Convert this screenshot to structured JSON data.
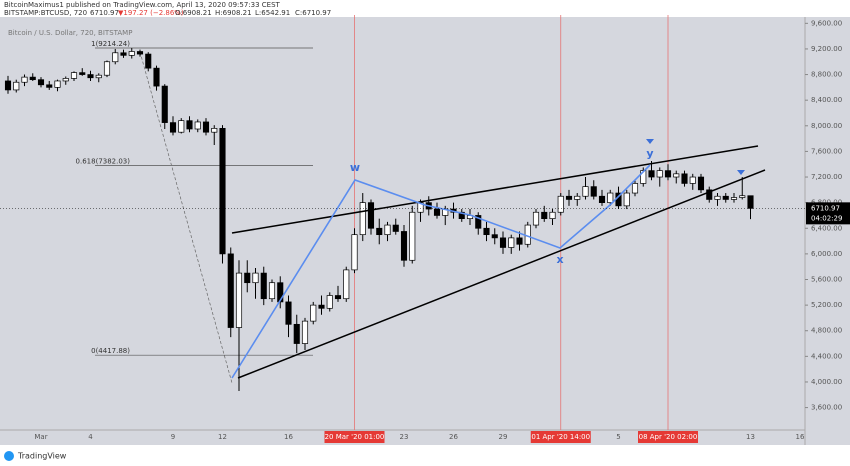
{
  "header": {
    "author_line": "BitcoinMaximus1 published on TradingView.com, April 13, 2020 09:57:33 CEST",
    "symbol": "BITSTAMP:BTCUSD, 720",
    "last": "6710.97",
    "change": "▼197.27 (−2.86%)",
    "ohlc": [
      "O:6908.21",
      "H:6908.21",
      "L:6542.91",
      "C:6710.97"
    ]
  },
  "footer": {
    "brand": "TradingView"
  },
  "chart_data": {
    "type": "candlestick",
    "subtitle": "Bitcoin / U.S. Dollar, 720, BITSTAMP",
    "categories": [
      null,
      null,
      null,
      null,
      "Mar",
      null,
      null,
      null,
      null,
      null,
      "4",
      null,
      null,
      null,
      null,
      null,
      null,
      null,
      null,
      null,
      "9",
      null,
      null,
      null,
      null,
      null,
      "12",
      null,
      null,
      null,
      null,
      null,
      null,
      null,
      "16",
      null,
      null,
      null,
      null,
      null,
      null,
      null,
      {
        "label": "20 Mar '20  01:00",
        "highlight": true
      },
      null,
      null,
      null,
      null,
      null,
      "23",
      null,
      null,
      null,
      null,
      null,
      "26",
      null,
      null,
      null,
      null,
      null,
      "29",
      null,
      null,
      null,
      null,
      null,
      null,
      {
        "label": "01 Apr '20  14:00",
        "highlight": true
      },
      null,
      null,
      null,
      null,
      null,
      null,
      "5",
      null,
      null,
      null,
      null,
      null,
      {
        "label": "08 Apr '20  02:00",
        "highlight": true
      },
      null,
      null,
      null,
      null,
      null,
      null,
      null,
      null,
      null,
      "13",
      null,
      null,
      null,
      null,
      null,
      "16"
    ],
    "open": [
      8700,
      8560,
      8680,
      8760,
      8720,
      8640,
      8600,
      8700,
      8740,
      8830,
      8800,
      8750,
      8790,
      9000,
      9140,
      9100,
      9160,
      9120,
      8900,
      8620,
      8050,
      7900,
      8080,
      7950,
      8060,
      7900,
      7960,
      6000,
      4850,
      5700,
      5550,
      5700,
      5300,
      5550,
      5250,
      4900,
      4600,
      4950,
      5200,
      5150,
      5350,
      5300,
      5750,
      6300,
      6800,
      6400,
      6300,
      6450,
      6350,
      5900,
      6650,
      6800,
      6700,
      6600,
      6700,
      6650,
      6550,
      6600,
      6400,
      6300,
      6250,
      6100,
      6250,
      6150,
      6450,
      6650,
      6550,
      6650,
      6900,
      6850,
      6900,
      7050,
      6900,
      6800,
      6950,
      6750,
      6950,
      7100,
      7300,
      7200,
      7300,
      7200,
      7250,
      7100,
      7200,
      7000,
      6850,
      6900,
      6850,
      6880,
      6908.21,
      null,
      null,
      null,
      null,
      null,
      null
    ],
    "high": [
      8780,
      8720,
      8800,
      8820,
      8760,
      8700,
      8720,
      8770,
      8850,
      8900,
      8860,
      8820,
      9020,
      9200,
      9190,
      9214.24,
      9190,
      9150,
      8940,
      8650,
      8150,
      8120,
      8150,
      8100,
      8120,
      8010,
      8010,
      6100,
      5900,
      5900,
      5780,
      5800,
      5600,
      5650,
      5350,
      5050,
      5000,
      5250,
      5350,
      5400,
      5500,
      5800,
      6400,
      6950,
      6850,
      6550,
      6500,
      6550,
      6450,
      6750,
      6850,
      6900,
      6800,
      6750,
      6800,
      6700,
      6700,
      6650,
      6500,
      6400,
      6350,
      6300,
      6350,
      6500,
      6700,
      6750,
      6700,
      6950,
      7000,
      6950,
      7200,
      7150,
      7000,
      7000,
      7050,
      7000,
      7150,
      7350,
      7450,
      7350,
      7400,
      7300,
      7300,
      7250,
      7250,
      7050,
      6950,
      6950,
      6950,
      7200,
      6908.21,
      null,
      null,
      null,
      null,
      null,
      null
    ],
    "low": [
      8500,
      8520,
      8620,
      8700,
      8600,
      8560,
      8540,
      8640,
      8700,
      8780,
      8700,
      8680,
      8760,
      8960,
      9060,
      9050,
      9080,
      8850,
      8550,
      7950,
      7850,
      7880,
      7900,
      7900,
      7850,
      7700,
      5850,
      4700,
      3858,
      5400,
      5300,
      5200,
      5250,
      5150,
      4700,
      4450,
      4500,
      4900,
      5050,
      5100,
      5250,
      5250,
      5700,
      6200,
      6300,
      6150,
      6200,
      6300,
      5800,
      5850,
      6500,
      6600,
      6550,
      6450,
      6550,
      6500,
      6450,
      6300,
      6200,
      6150,
      6000,
      6000,
      6050,
      6100,
      6400,
      6500,
      6450,
      6600,
      6750,
      6750,
      6850,
      6850,
      6750,
      6750,
      6700,
      6700,
      6900,
      7050,
      7150,
      7050,
      7150,
      7100,
      7050,
      7000,
      6950,
      6800,
      6750,
      6800,
      6800,
      6850,
      6542.91,
      null,
      null,
      null,
      null,
      null,
      null
    ],
    "close": [
      8560,
      8680,
      8760,
      8720,
      8640,
      8600,
      8700,
      8740,
      8830,
      8800,
      8750,
      8790,
      9000,
      9140,
      9100,
      9160,
      9120,
      8900,
      8620,
      8050,
      7900,
      8080,
      7950,
      8060,
      7900,
      7960,
      6000,
      4850,
      5700,
      5550,
      5700,
      5300,
      5550,
      5250,
      4900,
      4600,
      4950,
      5200,
      5150,
      5350,
      5300,
      5750,
      6300,
      6800,
      6400,
      6300,
      6450,
      6350,
      5900,
      6650,
      6800,
      6700,
      6600,
      6700,
      6650,
      6550,
      6600,
      6400,
      6300,
      6250,
      6100,
      6250,
      6150,
      6450,
      6650,
      6550,
      6650,
      6900,
      6850,
      6900,
      7050,
      6900,
      6800,
      6950,
      6750,
      6950,
      7100,
      7300,
      7200,
      7300,
      7200,
      7250,
      7100,
      7200,
      7000,
      6850,
      6900,
      6850,
      6880,
      6908.21,
      6710.97,
      null,
      null,
      null,
      null,
      null,
      null
    ],
    "up_color": "#ffffff",
    "down_color": "#000000",
    "ylim": [
      3250,
      9730
    ],
    "yticks": [
      {
        "value": 3600,
        "label": "3,600.00"
      },
      {
        "value": 4000,
        "label": "4,000.00"
      },
      {
        "value": 4400,
        "label": "4,400.00"
      },
      {
        "value": 4800,
        "label": "4,800.00"
      },
      {
        "value": 5200,
        "label": "5,200.00"
      },
      {
        "value": 5600,
        "label": "5,600.00"
      },
      {
        "value": 6000,
        "label": "6,000.00"
      },
      {
        "value": 6400,
        "label": "6,400.00"
      },
      {
        "value": 6800,
        "label": "6,800.00"
      },
      {
        "value": 7200,
        "label": "7,200.00"
      },
      {
        "value": 7600,
        "label": "7,600.00"
      },
      {
        "value": 8000,
        "label": "8,000.00"
      },
      {
        "value": 8400,
        "label": "8,400.00"
      },
      {
        "value": 8800,
        "label": "8,800.00"
      },
      {
        "value": 9200,
        "label": "9,200.00"
      },
      {
        "value": 9600,
        "label": "9,600.00"
      }
    ],
    "last_price": 6710.97,
    "countdown": "04:02:29",
    "fib_levels": [
      {
        "value": 9214.24,
        "label": "1(9214.24)"
      },
      {
        "value": 7382.03,
        "label": "0.618(7382.03)"
      },
      {
        "value": 4417.88,
        "label": "0(4417.88)"
      }
    ],
    "waves": [
      "w",
      "x",
      "y"
    ]
  }
}
